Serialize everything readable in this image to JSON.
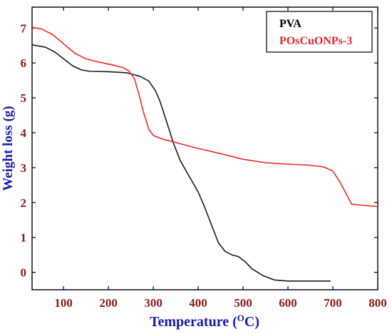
{
  "chart_data": {
    "type": "line",
    "xlabel": "Temperature",
    "xlabel_unit_superscript": "O",
    "xlabel_unit_tail": "C)",
    "ylabel": "Weight loss (g)",
    "xlim": [
      30,
      800
    ],
    "ylim": [
      -0.5,
      7.6
    ],
    "x_ticks": [
      100,
      200,
      300,
      400,
      500,
      600,
      700,
      800
    ],
    "y_ticks": [
      0,
      1,
      2,
      3,
      4,
      5,
      6,
      7
    ],
    "grid": false,
    "legend_position": "top-right",
    "colors": {
      "axes": "#000000",
      "tick_labels": "#8b1a1a",
      "x_title": "#1a1aa6",
      "y_title": "#1a1aa6",
      "legend_first": "#000000",
      "legend_second": "#e8232a"
    },
    "series": [
      {
        "name": "PVA",
        "color": "#1a1a1a",
        "points": [
          [
            30,
            6.52
          ],
          [
            60,
            6.45
          ],
          [
            80,
            6.32
          ],
          [
            100,
            6.12
          ],
          [
            120,
            5.92
          ],
          [
            140,
            5.8
          ],
          [
            160,
            5.76
          ],
          [
            200,
            5.75
          ],
          [
            240,
            5.72
          ],
          [
            270,
            5.62
          ],
          [
            290,
            5.48
          ],
          [
            305,
            5.2
          ],
          [
            315,
            4.9
          ],
          [
            330,
            4.3
          ],
          [
            345,
            3.7
          ],
          [
            360,
            3.2
          ],
          [
            380,
            2.75
          ],
          [
            400,
            2.3
          ],
          [
            415,
            1.85
          ],
          [
            430,
            1.35
          ],
          [
            445,
            0.85
          ],
          [
            460,
            0.6
          ],
          [
            475,
            0.5
          ],
          [
            490,
            0.45
          ],
          [
            505,
            0.3
          ],
          [
            520,
            0.1
          ],
          [
            545,
            -0.1
          ],
          [
            570,
            -0.22
          ],
          [
            600,
            -0.25
          ],
          [
            650,
            -0.25
          ],
          [
            695,
            -0.25
          ]
        ]
      },
      {
        "name": "POsCuONPs-3",
        "color": "#ee2a2a",
        "points": [
          [
            30,
            7.02
          ],
          [
            50,
            6.98
          ],
          [
            75,
            6.82
          ],
          [
            100,
            6.55
          ],
          [
            125,
            6.28
          ],
          [
            150,
            6.12
          ],
          [
            180,
            6.02
          ],
          [
            210,
            5.94
          ],
          [
            230,
            5.88
          ],
          [
            245,
            5.78
          ],
          [
            258,
            5.55
          ],
          [
            268,
            5.1
          ],
          [
            278,
            4.6
          ],
          [
            290,
            4.1
          ],
          [
            300,
            3.92
          ],
          [
            320,
            3.82
          ],
          [
            350,
            3.72
          ],
          [
            400,
            3.55
          ],
          [
            450,
            3.4
          ],
          [
            500,
            3.24
          ],
          [
            550,
            3.14
          ],
          [
            600,
            3.1
          ],
          [
            650,
            3.07
          ],
          [
            680,
            3.02
          ],
          [
            700,
            2.9
          ],
          [
            715,
            2.6
          ],
          [
            730,
            2.25
          ],
          [
            742,
            1.95
          ],
          [
            760,
            1.93
          ],
          [
            800,
            1.88
          ]
        ]
      }
    ]
  }
}
